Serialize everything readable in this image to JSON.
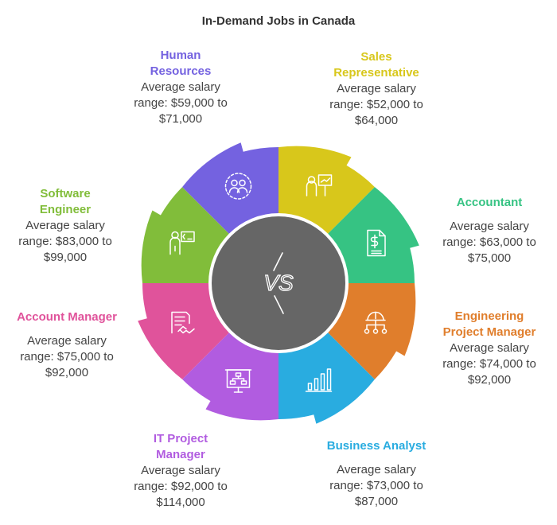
{
  "title": "In-Demand Jobs in Canada",
  "center_label": "VS",
  "jobs": [
    {
      "name": "Sales Representative",
      "lines": [
        "Sales",
        "Representative"
      ],
      "description_lines": [
        "Average salary",
        "range: $52,000 to",
        "$64,000"
      ],
      "color": "#d8c71b",
      "icon": "presenter-board-icon"
    },
    {
      "name": "Accountant",
      "lines": [
        "Accountant"
      ],
      "description_lines": [
        "Average salary",
        "range: $63,000 to",
        "$75,000"
      ],
      "color": "#36c383",
      "icon": "invoice-dollar-icon"
    },
    {
      "name": "Engineering Project Manager",
      "lines": [
        "Engineering",
        "Project Manager"
      ],
      "description_lines": [
        "Average salary",
        "range: $74,000 to",
        "$92,000"
      ],
      "color": "#e07e2c",
      "icon": "hardhat-network-icon"
    },
    {
      "name": "Business Analyst",
      "lines": [
        "Business Analyst"
      ],
      "description_lines": [
        "Average salary",
        "range: $73,000 to",
        "$87,000"
      ],
      "color": "#29ace0",
      "icon": "bar-chart-icon"
    },
    {
      "name": "IT Project Manager",
      "lines": [
        "IT Project",
        "Manager"
      ],
      "description_lines": [
        "Average salary",
        "range: $92,000 to",
        "$114,000"
      ],
      "color": "#b15ce0",
      "icon": "org-chart-board-icon"
    },
    {
      "name": "Account Manager",
      "lines": [
        "Account Manager"
      ],
      "description_lines": [
        "Average salary",
        "range: $75,000 to",
        "$92,000"
      ],
      "color": "#e0539b",
      "icon": "contract-handshake-icon"
    },
    {
      "name": "Software Engineer",
      "lines": [
        "Software",
        "Engineer"
      ],
      "description_lines": [
        "Average salary",
        "range: $83,000 to",
        "$99,000"
      ],
      "color": "#81bd3a",
      "icon": "developer-code-icon"
    },
    {
      "name": "Human Resources",
      "lines": [
        "Human",
        "Resources"
      ],
      "description_lines": [
        "Average salary",
        "range: $59,000 to",
        "$71,000"
      ],
      "color": "#7462e0",
      "icon": "people-circle-icon"
    }
  ]
}
